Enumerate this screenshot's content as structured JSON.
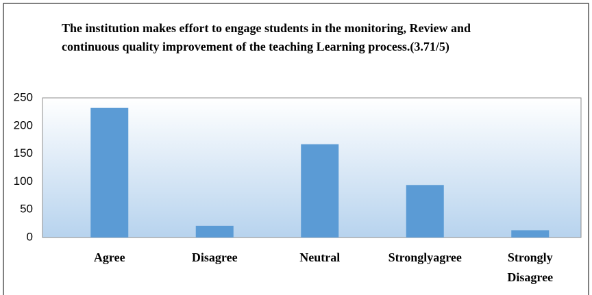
{
  "chart_data": {
    "type": "bar",
    "title": "The institution makes effort to engage students in the monitoring, Review and continuous quality improvement of the teaching Learning process.(3.71/5)",
    "categories": [
      "Agree",
      "Disagree",
      "Neutral",
      "Stronglyagree",
      "Strongly Disagree"
    ],
    "values": [
      232,
      21,
      167,
      94,
      13
    ],
    "color": "#5b9bd5",
    "ylim": [
      0,
      250
    ],
    "yticks": [
      0,
      50,
      100,
      150,
      200,
      250
    ],
    "grid": false
  }
}
